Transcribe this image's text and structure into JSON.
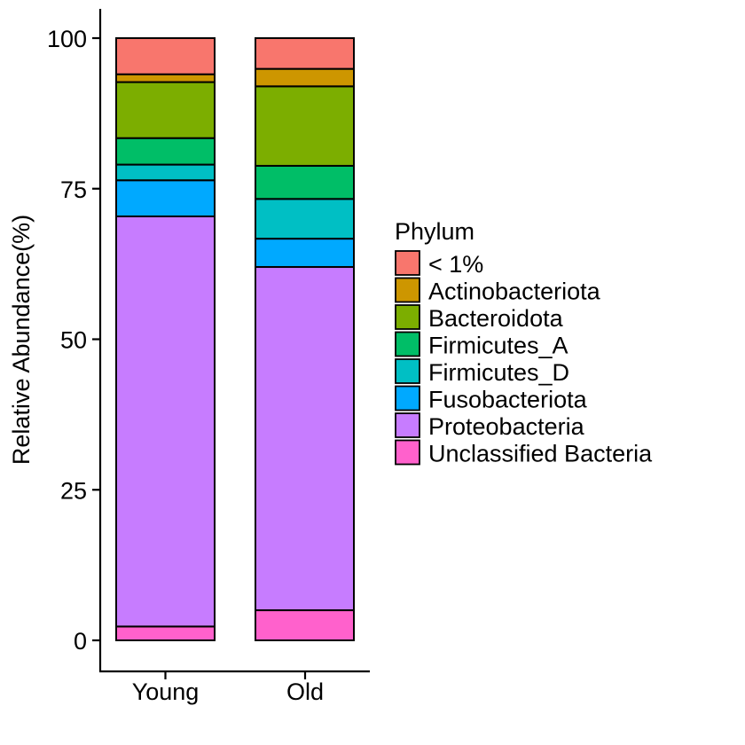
{
  "chart_data": {
    "type": "bar",
    "stacked": true,
    "categories": [
      "Young",
      "Old"
    ],
    "ylabel": "Relative Abundance(%)",
    "xlabel": "",
    "ylim": [
      0,
      100
    ],
    "yticks": [
      "0",
      "25",
      "50",
      "75",
      "100"
    ],
    "grid": false,
    "legend": {
      "title": "Phylum",
      "position": "right"
    },
    "series": [
      {
        "name": "Unclassified Bacteria",
        "color": "#FF61CC",
        "values": [
          2.3,
          5.0
        ]
      },
      {
        "name": "Proteobacteria",
        "color": "#C77CFF",
        "values": [
          68.1,
          57.0
        ]
      },
      {
        "name": "Fusobacteriota",
        "color": "#00A9FF",
        "values": [
          6.0,
          4.7
        ]
      },
      {
        "name": "Firmicutes_D",
        "color": "#00BFC4",
        "values": [
          2.6,
          6.6
        ]
      },
      {
        "name": "Firmicutes_A",
        "color": "#00BE67",
        "values": [
          4.4,
          5.5
        ]
      },
      {
        "name": "Bacteroidota",
        "color": "#7CAE00",
        "values": [
          9.3,
          13.2
        ]
      },
      {
        "name": "Actinobacteriota",
        "color": "#CD9600",
        "values": [
          1.3,
          2.9
        ]
      },
      {
        "name": "< 1%",
        "color": "#F8766D",
        "values": [
          6.0,
          5.1
        ]
      }
    ],
    "legend_order": [
      "< 1%",
      "Actinobacteriota",
      "Bacteroidota",
      "Firmicutes_A",
      "Firmicutes_D",
      "Fusobacteriota",
      "Proteobacteria",
      "Unclassified Bacteria"
    ]
  }
}
